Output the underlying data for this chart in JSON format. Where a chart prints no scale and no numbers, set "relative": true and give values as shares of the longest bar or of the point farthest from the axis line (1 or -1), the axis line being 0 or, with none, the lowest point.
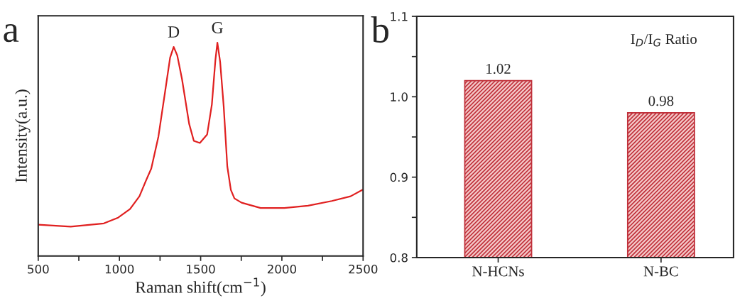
{
  "chart_data": [
    {
      "type": "line",
      "title": "a",
      "xlabel": "Raman shift(cm$^{−1}$)",
      "ylabel": "Intensity(a.u.)",
      "relative": true,
      "xlim": [
        500,
        2500
      ],
      "xticks": [
        500,
        {
          "value": 750,
          "label": null
        },
        1000,
        {
          "value": 1250,
          "label": null
        },
        1500,
        {
          "value": 1750,
          "label": null
        },
        2000,
        {
          "value": 2250,
          "label": null
        },
        2500
      ],
      "annotations": [
        {
          "text": "D",
          "x": 1334,
          "y": 0.98
        },
        {
          "text": "G",
          "x": 1603,
          "y": 1.0
        }
      ],
      "series": [
        {
          "color": "#e02020",
          "x": [
            500,
            700,
            904,
            992,
            1065,
            1123,
            1167,
            1196,
            1240,
            1283,
            1312,
            1334,
            1356,
            1385,
            1429,
            1458,
            1495,
            1540,
            1569,
            1591,
            1603,
            1620,
            1642,
            1664,
            1686,
            1708,
            1752,
            1869,
            2015,
            2161,
            2307,
            2423,
            2496
          ],
          "values": [
            0.147,
            0.138,
            0.153,
            0.18,
            0.22,
            0.28,
            0.36,
            0.41,
            0.56,
            0.78,
            0.93,
            0.98,
            0.94,
            0.83,
            0.62,
            0.54,
            0.53,
            0.57,
            0.71,
            0.92,
            1.0,
            0.91,
            0.7,
            0.42,
            0.31,
            0.27,
            0.25,
            0.225,
            0.225,
            0.236,
            0.258,
            0.28,
            0.31
          ]
        }
      ]
    },
    {
      "type": "bar",
      "title": "b",
      "categories": [
        "N-HCNs",
        "N-BC"
      ],
      "values": [
        1.02,
        0.98
      ],
      "color": "#c0303a",
      "data_labels": true,
      "ylim": [
        0.8,
        1.1
      ],
      "yticks": [
        0.8,
        {
          "value": 0.85,
          "label": null
        },
        0.9,
        {
          "value": 0.95,
          "label": null
        },
        {
          "value": 1.0,
          "label": "1.0"
        },
        {
          "value": 1.05,
          "label": null
        },
        1.1
      ],
      "annotations": [
        "I$_{D}$/I$_{G}$ Ratio"
      ]
    }
  ]
}
